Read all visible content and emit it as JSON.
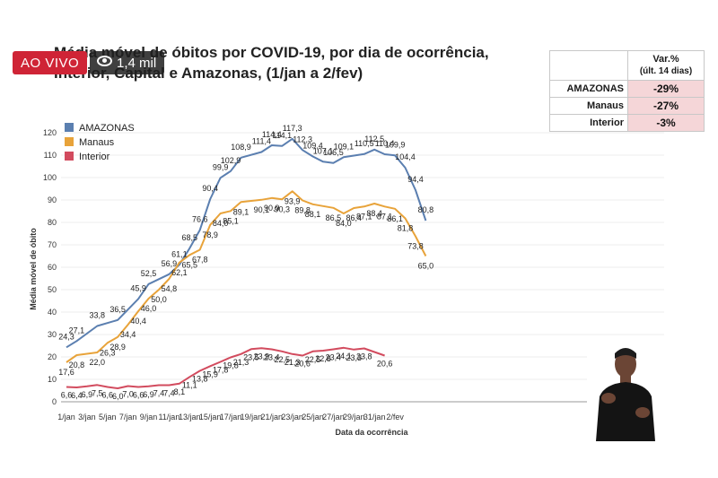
{
  "overlay": {
    "live_label": "AO VIVO",
    "views_label": "1,4 mil",
    "eye_icon": "eye-icon"
  },
  "variation_table": {
    "header_line1": "Var.%",
    "header_line2": "(últ. 14 dias)",
    "rows": [
      {
        "label": "AMAZONAS",
        "value": "-29%"
      },
      {
        "label": "Manaus",
        "value": "-27%"
      },
      {
        "label": "Interior",
        "value": "-3%"
      }
    ]
  },
  "chart_data": {
    "type": "line",
    "title_line1": "Média móvel de óbitos por COVID-19, por dia de ocorrência,",
    "title_line2": "Interior, Capital e Amazonas, (1/jan a 2/fev)",
    "xlabel": "Data da ocorrência",
    "ylabel": "Média móvel de óbito",
    "ylim": [
      0,
      120
    ],
    "yticks": [
      0,
      10,
      20,
      30,
      40,
      50,
      60,
      70,
      80,
      90,
      100,
      110,
      120
    ],
    "xlim": [
      1,
      34
    ],
    "xtick_labels": [
      "1/jan",
      "3/jan",
      "5/jan",
      "7/jan",
      "9/jan",
      "11/jan",
      "13/jan",
      "15/jan",
      "17/jan",
      "19/jan",
      "21/jan",
      "23/jan",
      "25/jan",
      "27/jan",
      "29/jan",
      "31/jan",
      "2/fev"
    ],
    "legend_position": "top-left",
    "series": [
      {
        "name": "AMAZONAS",
        "color": "#5b7fb0",
        "points": [
          {
            "day": 1,
            "value": 24.3
          },
          {
            "day": 2,
            "value": 27.1
          },
          {
            "day": 4,
            "value": 33.8
          },
          {
            "day": 6,
            "value": 36.5
          },
          {
            "day": 8,
            "value": 45.9
          },
          {
            "day": 9,
            "value": 52.5
          },
          {
            "day": 11,
            "value": 56.9
          },
          {
            "day": 12,
            "value": 61.1
          },
          {
            "day": 13,
            "value": 68.5
          },
          {
            "day": 14,
            "value": 76.6
          },
          {
            "day": 15,
            "value": 90.4
          },
          {
            "day": 16,
            "value": 99.9
          },
          {
            "day": 17,
            "value": 102.9
          },
          {
            "day": 18,
            "value": 108.9
          },
          {
            "day": 20,
            "value": 111.4
          },
          {
            "day": 21,
            "value": 114.4
          },
          {
            "day": 22,
            "value": 114.1
          },
          {
            "day": 23,
            "value": 117.3
          },
          {
            "day": 24,
            "value": 112.3
          },
          {
            "day": 25,
            "value": 109.4
          },
          {
            "day": 26,
            "value": 107.1
          },
          {
            "day": 27,
            "value": 106.5
          },
          {
            "day": 28,
            "value": 109.1
          },
          {
            "day": 30,
            "value": 110.5
          },
          {
            "day": 31,
            "value": 112.5
          },
          {
            "day": 32,
            "value": 110.4
          },
          {
            "day": 33,
            "value": 109.9
          },
          {
            "day": 34,
            "value": 104.4
          },
          {
            "day": 35,
            "value": 94.4
          },
          {
            "day": 36,
            "value": 80.8
          }
        ],
        "labels": [
          "24,3",
          "27,1",
          "33,8",
          "36,5",
          "45,9",
          "52,5",
          "56,9",
          "61,1",
          "68,5",
          "76,6",
          "90,4",
          "99,9",
          "102,9",
          "108,9",
          "111,4",
          "114,4",
          "114,1",
          "117,3",
          "112,3",
          "109,4",
          "107,1",
          "106,5",
          "109,1",
          "110,5",
          "112,5",
          "110,4",
          "109,9",
          "104,4",
          "94,4",
          "80,8"
        ]
      },
      {
        "name": "Manaus",
        "color": "#e8a33a",
        "points": [
          {
            "day": 1,
            "value": 17.6
          },
          {
            "day": 2,
            "value": 20.8
          },
          {
            "day": 4,
            "value": 22.0
          },
          {
            "day": 5,
            "value": 26.3
          },
          {
            "day": 6,
            "value": 28.9
          },
          {
            "day": 7,
            "value": 34.4
          },
          {
            "day": 8,
            "value": 40.4
          },
          {
            "day": 9,
            "value": 46.0
          },
          {
            "day": 10,
            "value": 50.0
          },
          {
            "day": 11,
            "value": 54.8
          },
          {
            "day": 12,
            "value": 62.1
          },
          {
            "day": 13,
            "value": 65.5
          },
          {
            "day": 14,
            "value": 67.8
          },
          {
            "day": 15,
            "value": 78.9
          },
          {
            "day": 16,
            "value": 84.0
          },
          {
            "day": 17,
            "value": 85.1
          },
          {
            "day": 18,
            "value": 89.1
          },
          {
            "day": 20,
            "value": 90.1
          },
          {
            "day": 21,
            "value": 90.9
          },
          {
            "day": 22,
            "value": 90.3
          },
          {
            "day": 23,
            "value": 93.9
          },
          {
            "day": 24,
            "value": 89.8
          },
          {
            "day": 25,
            "value": 88.1
          },
          {
            "day": 27,
            "value": 86.5
          },
          {
            "day": 28,
            "value": 84.0
          },
          {
            "day": 29,
            "value": 86.4
          },
          {
            "day": 30,
            "value": 87.1
          },
          {
            "day": 31,
            "value": 88.4
          },
          {
            "day": 32,
            "value": 87.1
          },
          {
            "day": 33,
            "value": 86.1
          },
          {
            "day": 34,
            "value": 81.8
          },
          {
            "day": 35,
            "value": 73.8
          },
          {
            "day": 36,
            "value": 65.0
          }
        ],
        "labels": [
          "17,6",
          "20,8",
          "22,0",
          "26,3",
          "28,9",
          "34,4",
          "40,4",
          "46,0",
          "50,0",
          "54,8",
          "62,1",
          "65,5",
          "67,8",
          "78,9",
          "84,0",
          "85,1",
          "89,1",
          "90,1",
          "90,9",
          "90,3",
          "93,9",
          "89,8",
          "88,1",
          "86,5",
          "84,0",
          "86,4",
          "87,1",
          "88,4",
          "87,1",
          "86,1",
          "81,8",
          "73,8",
          "65,0"
        ]
      },
      {
        "name": "Interior",
        "color": "#d24b5e",
        "points": [
          {
            "day": 1,
            "value": 6.6
          },
          {
            "day": 2,
            "value": 6.4
          },
          {
            "day": 3,
            "value": 6.9
          },
          {
            "day": 4,
            "value": 7.5
          },
          {
            "day": 5,
            "value": 6.6
          },
          {
            "day": 6,
            "value": 6.0
          },
          {
            "day": 7,
            "value": 7.0
          },
          {
            "day": 8,
            "value": 6.6
          },
          {
            "day": 9,
            "value": 6.9
          },
          {
            "day": 10,
            "value": 7.4
          },
          {
            "day": 11,
            "value": 7.4
          },
          {
            "day": 12,
            "value": 8.1
          },
          {
            "day": 13,
            "value": 11.1
          },
          {
            "day": 14,
            "value": 13.8
          },
          {
            "day": 15,
            "value": 15.9
          },
          {
            "day": 16,
            "value": 17.8
          },
          {
            "day": 17,
            "value": 19.8
          },
          {
            "day": 18,
            "value": 21.3
          },
          {
            "day": 19,
            "value": 23.5
          },
          {
            "day": 20,
            "value": 23.9
          },
          {
            "day": 21,
            "value": 23.4
          },
          {
            "day": 22,
            "value": 22.5
          },
          {
            "day": 23,
            "value": 21.3
          },
          {
            "day": 24,
            "value": 20.6
          },
          {
            "day": 25,
            "value": 22.5
          },
          {
            "day": 26,
            "value": 22.8
          },
          {
            "day": 27,
            "value": 23.4
          },
          {
            "day": 28,
            "value": 24.1
          },
          {
            "day": 29,
            "value": 23.3
          },
          {
            "day": 30,
            "value": 23.8
          },
          {
            "day": 32,
            "value": 20.6
          }
        ],
        "labels": [
          "6,6",
          "6,4",
          "6,9",
          "7,5",
          "6,6",
          "6,0",
          "7,0",
          "6,6",
          "6,9",
          "7,4",
          "7,4",
          "8,1",
          "11,1",
          "13,8",
          "15,9",
          "17,8",
          "19,8",
          "21,3",
          "23,5",
          "23,9",
          "23,4",
          "22,5",
          "21,3",
          "20,6",
          "22,5",
          "22,8",
          "23,4",
          "24,1",
          "23,3",
          "23,8",
          "20,6"
        ]
      }
    ]
  }
}
